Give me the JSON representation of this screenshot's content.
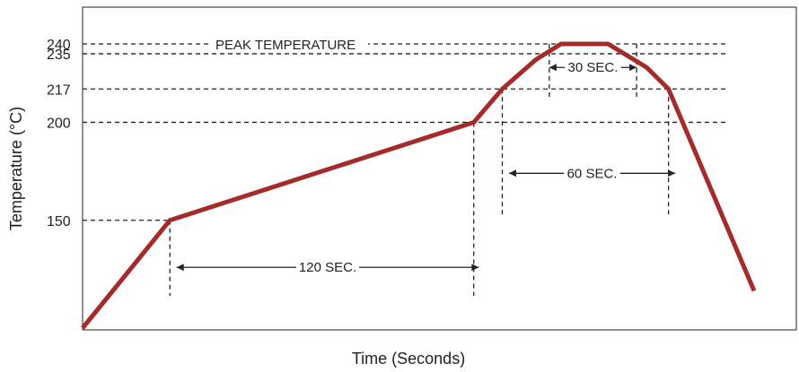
{
  "chart_data": {
    "type": "line",
    "title": "",
    "xlabel": "Time (Seconds)",
    "ylabel": "Temperature (°C)",
    "y_ticks": [
      "240",
      "235",
      "217",
      "200",
      "150"
    ],
    "y_tick_values": [
      240,
      235,
      217,
      200,
      150
    ],
    "y_range": [
      95,
      270
    ],
    "x_range": [
      0,
      400
    ],
    "grid": "dashed lines at labeled temperatures",
    "legend": "none",
    "colors": {
      "profile": "#a52a2a",
      "reference": "#222222"
    },
    "series": [
      {
        "x": [
          0,
          52,
          233,
          250,
          270,
          285,
          313,
          336,
          349,
          400
        ],
        "y": [
          95,
          150,
          200,
          217,
          232,
          240,
          240,
          228,
          217,
          114
        ]
      }
    ],
    "annotations": [
      {
        "label": "PEAK TEMPERATURE",
        "y": 240
      },
      {
        "label": "30 SEC.",
        "x_start": 278,
        "x_end": 330,
        "y": 228
      },
      {
        "label": "60 SEC.",
        "x_start": 254,
        "x_end": 353,
        "y": 174
      },
      {
        "label": "120 SEC.",
        "x_start": 56,
        "x_end": 236,
        "y": 126
      }
    ]
  }
}
